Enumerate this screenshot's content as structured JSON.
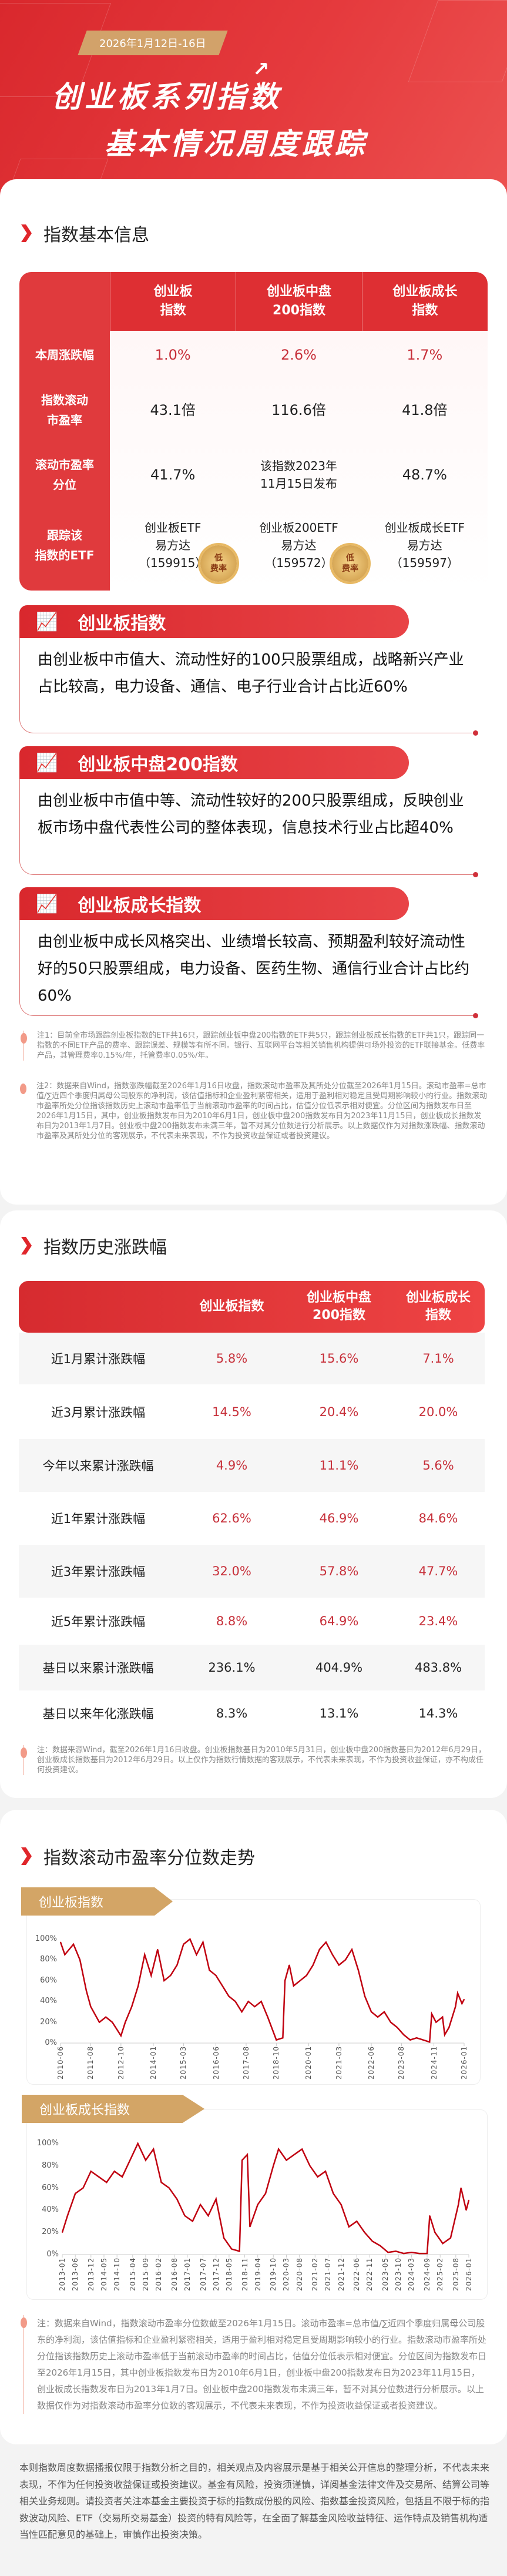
{
  "header": {
    "date": "2026年1月12日-16日",
    "title_line1": "创业板系列指数",
    "title_line2": "基本情况周度跟踪"
  },
  "colors": {
    "accent": "#de2f33",
    "gold": "#d3a566",
    "value_red": "#c7303a",
    "line": "#c00010"
  },
  "basic": {
    "title": "指数基本信息",
    "columns": [
      "创业板\n指数",
      "创业板中盘\n200指数",
      "创业板成长\n指数"
    ],
    "rows": [
      {
        "label": "本周涨跌幅",
        "values": [
          "1.0%",
          "2.6%",
          "1.7%"
        ]
      },
      {
        "label": "指数滚动\n市盈率",
        "values": [
          "43.1倍",
          "116.6倍",
          "41.8倍"
        ]
      },
      {
        "label": "滚动市盈率\n分位",
        "values": [
          "41.7%",
          "该指数2023年\n11月15日发布",
          "48.7%"
        ]
      },
      {
        "label": "跟踪该\n指数的ETF",
        "values": [
          "创业板ETF\n易方达\n（159915）",
          "创业板200ETF\n易方达\n（159572）",
          "创业板成长ETF\n易方达\n（159597）"
        ]
      }
    ],
    "seal": "低\n费率"
  },
  "descriptions": [
    {
      "title": "创业板指数",
      "text": "由创业板中市值大、流动性好的100只股票组成，战略新兴产业占比较高，电力设备、通信、电子行业合计占比近60%"
    },
    {
      "title": "创业板中盘200指数",
      "text": "由创业板中市值中等、流动性较好的200只股票组成，反映创业板市场中盘代表性公司的整体表现，信息技术行业占比超40%"
    },
    {
      "title": "创业板成长指数",
      "text": "由创业板中成长风格突出、业绩增长较高、预期盈利较好流动性好的50只股票组成，电力设备、医药生物、通信行业合计占比约60%"
    }
  ],
  "notes1": [
    "注1：目前全市场跟踪创业板指数的ETF共16只，跟踪创业板中盘200指数的ETF共5只，跟踪创业板成长指数的ETF共1只，跟踪同一指数的不同ETF产品的费率、跟踪误差、规模等有所不同。银行、互联网平台等相关销售机构提供可场外投资的ETF联接基金。低费率产品，其管理费率0.15%/年，托管费率0.05%/年。",
    "注2：数据来自Wind，指数涨跌幅截至2026年1月16日收盘，指数滚动市盈率及其所处分位截至2026年1月15日。滚动市盈率=总市值/∑近四个季度归属母公司股东的净利润，该估值指标和企业盈利紧密相关，适用于盈利相对稳定且受周期影响较小的行业。指数滚动市盈率所处分位指该指数历史上滚动市盈率低于当前滚动市盈率的时间占比，估值分位低表示相对便宜。分位区间为指数发布日至2026年1月15日，其中，创业板指数发布日为2010年6月1日，创业板中盘200指数发布日为2023年11月15日，创业板成长指数发布日为2013年1月7日。创业板中盘200指数发布未满三年，暂不对其分位数进行分析展示。以上数据仅作为对指数涨跌幅、指数滚动市盈率及其所处分位的客观展示，不代表未来表现，不作为投资收益保证或者投资建议。"
  ],
  "history": {
    "title": "指数历史涨跌幅",
    "columns": [
      "创业板指数",
      "创业板中盘\n200指数",
      "创业板成长\n指数"
    ],
    "rows": [
      {
        "label": "近1月累计涨跌幅",
        "values": [
          "5.8%",
          "15.6%",
          "7.1%"
        ],
        "red": true
      },
      {
        "label": "近3月累计涨跌幅",
        "values": [
          "14.5%",
          "20.4%",
          "20.0%"
        ],
        "red": true
      },
      {
        "label": "今年以来累计涨跌幅",
        "values": [
          "4.9%",
          "11.1%",
          "5.6%"
        ],
        "red": true
      },
      {
        "label": "近1年累计涨跌幅",
        "values": [
          "62.6%",
          "46.9%",
          "84.6%"
        ],
        "red": true
      },
      {
        "label": "近3年累计涨跌幅",
        "values": [
          "32.0%",
          "57.8%",
          "47.7%"
        ],
        "red": true
      },
      {
        "label": "近5年累计涨跌幅",
        "values": [
          "8.8%",
          "64.9%",
          "23.4%"
        ],
        "red": true
      },
      {
        "label": "基日以来累计涨跌幅",
        "values": [
          "236.1%",
          "404.9%",
          "483.8%"
        ],
        "red": false
      },
      {
        "label": "基日以来年化涨跌幅",
        "values": [
          "8.3%",
          "13.1%",
          "14.3%"
        ],
        "red": false
      }
    ],
    "note": "注：数据来源Wind，截至2026年1月16日收盘。创业板指数基日为2010年5月31日，创业板中盘200指数基日为2012年6月29日，创业板成长指数基日为2012年6月29日。以上仅作为指数行情数据的客观展示，不代表未来表现，不作为投资收益保证，亦不构成任何投资建议。"
  },
  "percentile": {
    "title": "指数滚动市盈率分位数走势",
    "note": "注：数据来自Wind，指数滚动市盈率分位数截至2026年1月15日。滚动市盈率=总市值/∑近四个季度归属母公司股东的净利润，该估值指标和企业盈利紧密相关，适用于盈利相对稳定且受周期影响较小的行业。指数滚动市盈率所处分位指该指数历史上滚动市盈率低于当前滚动市盈率的时间占比，估值分位低表示相对便宜。分位区间为指数发布日至2026年1月15日，其中创业板指数发布日为2010年6月1日，创业板中盘200指数发布日为2023年11月15日，创业板成长指数发布日为2013年1月7日。创业板中盘200指数发布未满三年，暂不对其分位数进行分析展示。以上数据仅作为对指数滚动市盈率分位数的客观展示，不代表未来表现，不作为投资收益保证或者投资建议。"
  },
  "chart_data": [
    {
      "type": "line",
      "title": "创业板指数",
      "ylim": [
        0,
        100
      ],
      "yticks": [
        "0%",
        "20%",
        "40%",
        "60%",
        "80%",
        "100%"
      ],
      "grid": false,
      "xticks": [
        "2010-06",
        "2011-08",
        "2012-10",
        "2014-01",
        "2015-03",
        "2016-06",
        "2017-08",
        "2018-10",
        "2020-01",
        "2021-03",
        "2022-06",
        "2023-08",
        "2024-11",
        "2026-01"
      ],
      "x": [
        "2010-06",
        "2010-08",
        "2010-12",
        "2011-03",
        "2011-06",
        "2011-08",
        "2011-12",
        "2012-03",
        "2012-06",
        "2012-10",
        "2012-12",
        "2013-03",
        "2013-06",
        "2013-09",
        "2013-12",
        "2014-03",
        "2014-06",
        "2014-09",
        "2014-12",
        "2015-03",
        "2015-06",
        "2015-09",
        "2015-12",
        "2016-03",
        "2016-06",
        "2016-09",
        "2016-12",
        "2017-03",
        "2017-06",
        "2017-09",
        "2017-12",
        "2018-03",
        "2018-06",
        "2018-10",
        "2019-01",
        "2019-02",
        "2019-04",
        "2019-06",
        "2019-09",
        "2019-12",
        "2020-03",
        "2020-06",
        "2020-09",
        "2020-12",
        "2021-03",
        "2021-06",
        "2021-09",
        "2021-12",
        "2022-03",
        "2022-06",
        "2022-09",
        "2022-12",
        "2023-03",
        "2023-06",
        "2023-09",
        "2023-12",
        "2024-03",
        "2024-06",
        "2024-09",
        "2024-10",
        "2024-12",
        "2025-03",
        "2025-04",
        "2025-06",
        "2025-09",
        "2025-10",
        "2025-12",
        "2026-01"
      ],
      "values": [
        97,
        85,
        95,
        80,
        50,
        35,
        20,
        25,
        20,
        7,
        20,
        35,
        55,
        85,
        65,
        90,
        60,
        65,
        75,
        95,
        100,
        85,
        97,
        70,
        65,
        55,
        45,
        40,
        30,
        40,
        35,
        40,
        25,
        3,
        5,
        60,
        75,
        55,
        60,
        65,
        75,
        90,
        97,
        85,
        75,
        80,
        90,
        70,
        45,
        30,
        25,
        30,
        20,
        15,
        8,
        3,
        5,
        3,
        1,
        28,
        20,
        25,
        8,
        15,
        35,
        48,
        38,
        42
      ]
    },
    {
      "type": "line",
      "title": "创业板成长指数",
      "ylim": [
        0,
        100
      ],
      "yticks": [
        "0%",
        "20%",
        "40%",
        "60%",
        "80%",
        "100%"
      ],
      "grid": false,
      "xticks": [
        "2013-01",
        "2013-06",
        "2013-12",
        "2014-05",
        "2014-10",
        "2015-04",
        "2015-09",
        "2016-02",
        "2016-08",
        "2017-01",
        "2017-07",
        "2017-12",
        "2018-05",
        "2018-11",
        "2019-04",
        "2019-10",
        "2020-03",
        "2020-08",
        "2021-02",
        "2021-07",
        "2021-12",
        "2022-06",
        "2022-11",
        "2023-05",
        "2023-10",
        "2024-03",
        "2024-09",
        "2025-02",
        "2025-08",
        "2026-01"
      ],
      "x": [
        "2013-01",
        "2013-03",
        "2013-06",
        "2013-09",
        "2013-12",
        "2014-03",
        "2014-06",
        "2014-09",
        "2014-12",
        "2015-03",
        "2015-06",
        "2015-09",
        "2015-12",
        "2016-03",
        "2016-06",
        "2016-09",
        "2016-12",
        "2017-03",
        "2017-06",
        "2017-09",
        "2017-12",
        "2018-03",
        "2018-06",
        "2018-09",
        "2018-10",
        "2018-12",
        "2019-01",
        "2019-04",
        "2019-07",
        "2019-10",
        "2019-12",
        "2020-03",
        "2020-06",
        "2020-09",
        "2020-12",
        "2021-03",
        "2021-06",
        "2021-09",
        "2021-12",
        "2022-03",
        "2022-06",
        "2022-09",
        "2022-12",
        "2023-03",
        "2023-06",
        "2023-09",
        "2023-12",
        "2024-03",
        "2024-06",
        "2024-09",
        "2024-10",
        "2024-12",
        "2025-03",
        "2025-06",
        "2025-09",
        "2025-10",
        "2025-12",
        "2026-01"
      ],
      "values": [
        20,
        35,
        55,
        60,
        75,
        70,
        65,
        75,
        70,
        85,
        100,
        85,
        95,
        65,
        60,
        50,
        35,
        30,
        45,
        35,
        50,
        15,
        5,
        3,
        85,
        90,
        25,
        45,
        55,
        80,
        95,
        85,
        90,
        95,
        80,
        70,
        75,
        55,
        45,
        25,
        30,
        20,
        12,
        8,
        2,
        3,
        1,
        2,
        1,
        1,
        35,
        20,
        10,
        15,
        45,
        60,
        40,
        49
      ]
    }
  ],
  "footer": "本则指数周度数据播报仅限于指数分析之目的，相关观点及内容展示是基于相关公开信息的整理分析，不代表未来表现，不作为任何投资收益保证或投资建议。基金有风险，投资须谨慎，详阅基金法律文件及交易所、结算公司等相关业务规则。请投资者关注本基金主要投资于标的指数成份股的风险、指数基金投资风险，包括且不限于标的指数波动风险、ETF（交易所交易基金）投资的特有风险等，在全面了解基金风险收益特征、运作特点及销售机构适当性匹配意见的基础上，审慎作出投资决策。"
}
